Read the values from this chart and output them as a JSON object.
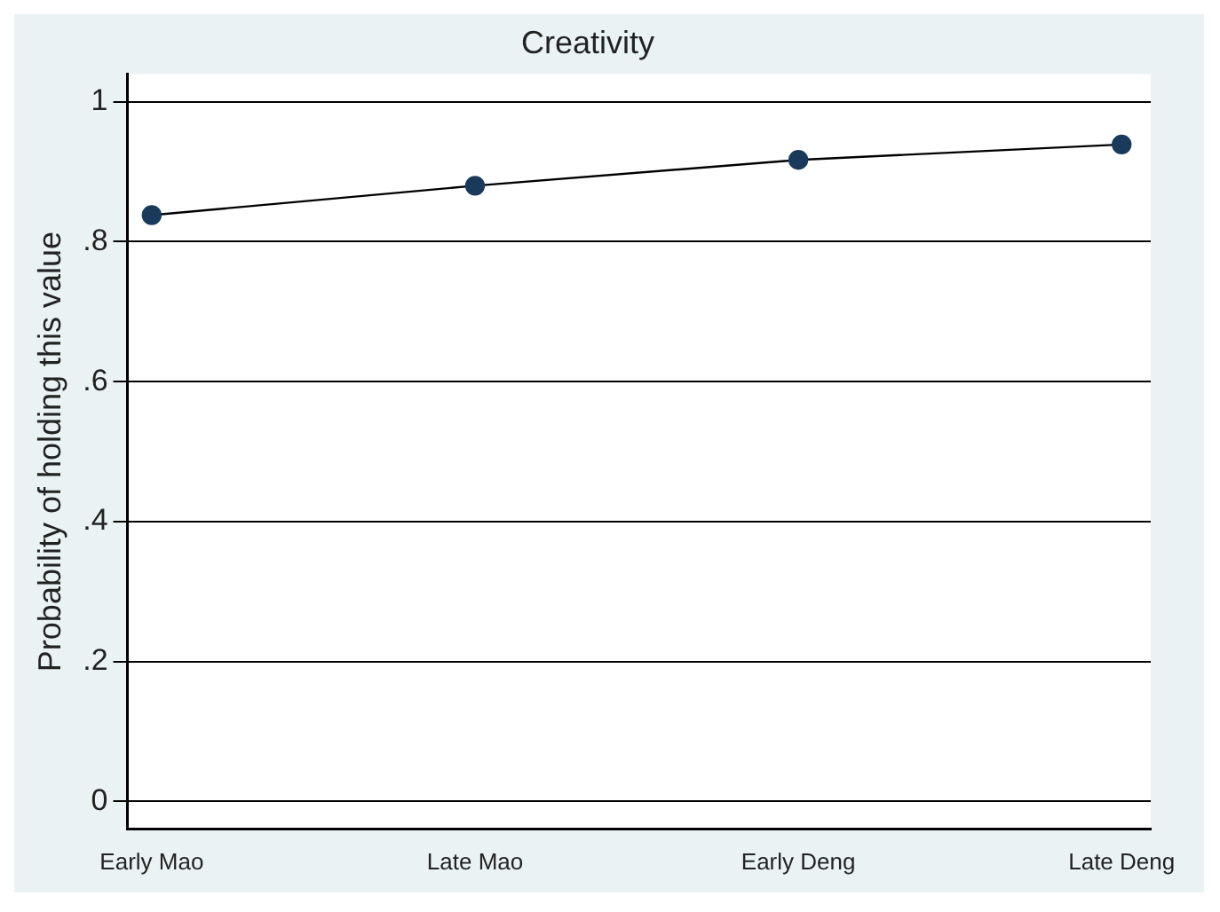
{
  "chart_data": {
    "type": "line",
    "title": "Creativity",
    "ylabel": "Probability of holding this value",
    "categories": [
      "Early Mao",
      "Late Mao",
      "Early Deng",
      "Late Deng"
    ],
    "series": [
      {
        "color": "#1a3a5c",
        "values": [
          0.838,
          0.88,
          0.917,
          0.939
        ]
      }
    ],
    "ylim": [
      -0.04,
      1.04
    ],
    "yticks": [
      {
        "value": 0,
        "label": "0"
      },
      {
        "value": 0.2,
        "label": ".2"
      },
      {
        "value": 0.4,
        "label": ".4"
      },
      {
        "value": 0.6,
        "label": ".6"
      },
      {
        "value": 0.8,
        "label": ".8"
      },
      {
        "value": 1,
        "label": "1"
      }
    ],
    "grid": "y",
    "legend": false,
    "marker": "circle",
    "line_style": "solid"
  }
}
